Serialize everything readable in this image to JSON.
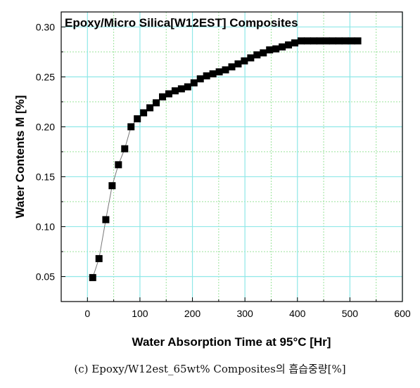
{
  "caption": "(c) Epoxy/W12est_65wt% Composites의 흡습중량[%]",
  "chart_data": {
    "type": "scatter",
    "title": "Epoxy/Micro Silica[W12EST] Composites",
    "xlabel": "Water Absorption Time at 95°C [Hr]",
    "ylabel": "Water Contents M [%]",
    "xlim": [
      -50,
      600
    ],
    "ylim": [
      0.025,
      0.315
    ],
    "xticks": [
      0,
      100,
      200,
      300,
      400,
      500,
      600
    ],
    "yticks": [
      0.05,
      0.1,
      0.15,
      0.2,
      0.25,
      0.3
    ],
    "xtick_labels": [
      "0",
      "100",
      "200",
      "300",
      "400",
      "500",
      "600"
    ],
    "ytick_labels": [
      "0.05",
      "0.10",
      "0.15",
      "0.20",
      "0.25",
      "0.30"
    ],
    "grid": true,
    "marker": "square",
    "line": "connected",
    "colors": {
      "marker": "#000000",
      "line": "#777777",
      "major_grid": "#8fe8e8",
      "minor_grid": "#9be39b"
    },
    "series": [
      {
        "x": [
          10,
          22,
          35,
          47,
          59,
          71,
          83,
          95,
          107,
          119,
          131,
          143,
          155,
          167,
          179,
          191,
          203,
          215,
          227,
          239,
          251,
          263,
          275,
          287,
          299,
          311,
          323,
          335,
          347,
          359,
          371,
          383,
          395,
          407,
          419,
          431,
          443,
          455,
          467,
          479,
          491,
          503,
          515
        ],
        "y": [
          0.049,
          0.068,
          0.107,
          0.141,
          0.162,
          0.178,
          0.2,
          0.208,
          0.214,
          0.219,
          0.224,
          0.23,
          0.233,
          0.236,
          0.238,
          0.24,
          0.244,
          0.248,
          0.251,
          0.253,
          0.255,
          0.257,
          0.26,
          0.263,
          0.266,
          0.269,
          0.272,
          0.274,
          0.277,
          0.278,
          0.28,
          0.282,
          0.284,
          0.286,
          0.286,
          0.286,
          0.286,
          0.286,
          0.286,
          0.286,
          0.286,
          0.286,
          0.286
        ]
      }
    ]
  }
}
